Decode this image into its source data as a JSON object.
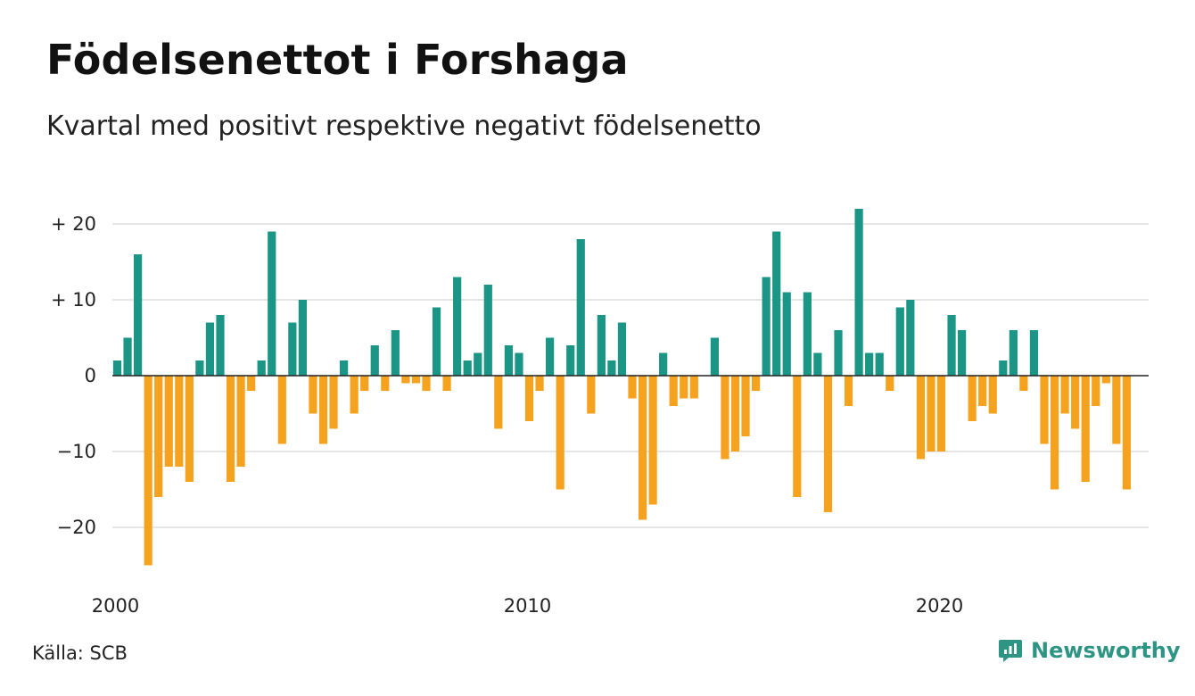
{
  "title": "Födelsenettot i Forshaga",
  "subtitle": "Kvartal med positivt respektive negativt födelsenetto",
  "source": "Källa: SCB",
  "brand": {
    "name": "Newsworthy",
    "icon": "newsworthy-logo-icon"
  },
  "colors": {
    "positive": "#1b9585",
    "negative": "#f5a31e",
    "grid": "#dddddd",
    "zero": "#222222",
    "brand": "#2e9484"
  },
  "chart_data": {
    "type": "bar",
    "title": "Födelsenettot i Forshaga",
    "ylim": [
      -25,
      22
    ],
    "yticks": [
      20,
      10,
      0,
      -10,
      -20
    ],
    "ytick_labels": [
      "+ 20",
      "+ 10",
      "0",
      "−10",
      "−20"
    ],
    "x_start_year": 2000,
    "quarters_per_year": 4,
    "xticks": [
      2000,
      2010,
      2020
    ],
    "xtick_labels": [
      "2000",
      "2010",
      "2020"
    ],
    "grid": true,
    "values": [
      2,
      5,
      16,
      -25,
      -16,
      -12,
      -12,
      -14,
      2,
      7,
      8,
      -14,
      -12,
      -2,
      2,
      19,
      -9,
      7,
      10,
      -5,
      -9,
      -7,
      2,
      -5,
      -2,
      4,
      -2,
      6,
      -1,
      -1,
      -2,
      9,
      -2,
      13,
      2,
      3,
      12,
      -7,
      4,
      3,
      -6,
      -2,
      5,
      -15,
      4,
      18,
      -5,
      8,
      2,
      7,
      -3,
      -19,
      -17,
      3,
      -4,
      -3,
      -3,
      0,
      5,
      -11,
      -10,
      -8,
      -2,
      13,
      19,
      11,
      -16,
      11,
      3,
      -18,
      6,
      -4,
      22,
      3,
      3,
      -2,
      9,
      10,
      -11,
      -10,
      -10,
      8,
      6,
      -6,
      -4,
      -5,
      2,
      6,
      -2,
      6,
      -9,
      -15,
      -5,
      -7,
      -14,
      -4,
      -1,
      -9,
      -15
    ]
  }
}
